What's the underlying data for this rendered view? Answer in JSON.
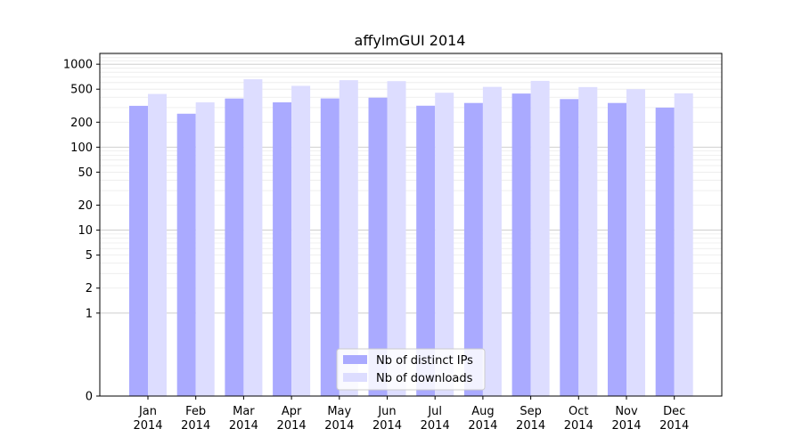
{
  "chart_data": {
    "type": "bar",
    "title": "affylmGUI 2014",
    "xlabel": "",
    "ylabel": "",
    "yscale": "symlog",
    "ylim": [
      0,
      1350
    ],
    "yticks": [
      0,
      1,
      2,
      5,
      10,
      20,
      50,
      100,
      200,
      500,
      1000
    ],
    "categories": [
      [
        "Jan",
        "2014"
      ],
      [
        "Feb",
        "2014"
      ],
      [
        "Mar",
        "2014"
      ],
      [
        "Apr",
        "2014"
      ],
      [
        "May",
        "2014"
      ],
      [
        "Jun",
        "2014"
      ],
      [
        "Jul",
        "2014"
      ],
      [
        "Aug",
        "2014"
      ],
      [
        "Sep",
        "2014"
      ],
      [
        "Oct",
        "2014"
      ],
      [
        "Nov",
        "2014"
      ],
      [
        "Dec",
        "2014"
      ]
    ],
    "series": [
      {
        "name": "Nb of distinct IPs",
        "color": "#aaaaff",
        "values": [
          315,
          253,
          386,
          347,
          387,
          395,
          316,
          341,
          443,
          380,
          341,
          300
        ]
      },
      {
        "name": "Nb of downloads",
        "color": "#ddddff",
        "values": [
          438,
          347,
          659,
          549,
          642,
          625,
          453,
          533,
          629,
          530,
          500,
          446
        ]
      }
    ],
    "grid": true,
    "legend": "lower-center"
  }
}
